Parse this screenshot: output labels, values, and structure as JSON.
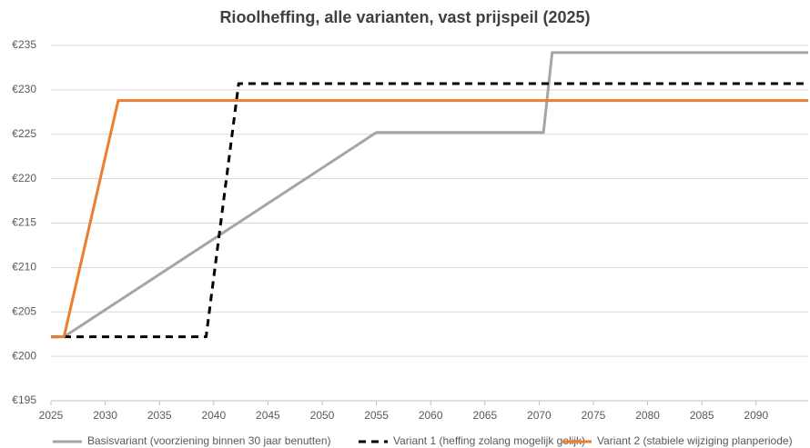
{
  "chart_data": {
    "type": "line",
    "title": "Rioolheffing, alle varianten, vast prijspeil (2025)",
    "xlim": [
      2025,
      2094.8
    ],
    "xticks": [
      2025,
      2030,
      2035,
      2040,
      2045,
      2050,
      2055,
      2060,
      2065,
      2070,
      2075,
      2080,
      2085,
      2090
    ],
    "ylim": [
      195,
      235
    ],
    "yticks": [
      {
        "value": 195,
        "label": "€195"
      },
      {
        "value": 200,
        "label": "€200"
      },
      {
        "value": 205,
        "label": "€205"
      },
      {
        "value": 210,
        "label": "€210"
      },
      {
        "value": 215,
        "label": "€215"
      },
      {
        "value": 220,
        "label": "€220"
      },
      {
        "value": 225,
        "label": "€225"
      },
      {
        "value": 230,
        "label": "€230"
      },
      {
        "value": 235,
        "label": "€235"
      }
    ],
    "grid": true,
    "legend": "bottom",
    "series": [
      {
        "name": "Basisvariant (voorziening binnen 30 jaar benutten)",
        "color": "#a5a5a5",
        "dashed": false,
        "x": [
          2025,
          2026.2,
          2055,
          2070.4,
          2071.2,
          2094.8
        ],
        "values": [
          202.2,
          202.2,
          225.2,
          225.2,
          234.2,
          234.2
        ]
      },
      {
        "name": "Variant 1 (heffing zolang mogelijk gelijk)",
        "color": "#000000",
        "dashed": true,
        "x": [
          2025,
          2039.3,
          2042.3,
          2094.8
        ],
        "values": [
          202.2,
          202.2,
          230.7,
          230.7
        ]
      },
      {
        "name": "Variant 2 (stabiele wijziging planperiode)",
        "color": "#ed7d31",
        "dashed": false,
        "x": [
          2025,
          2026.2,
          2031.2,
          2094.8
        ],
        "values": [
          202.2,
          202.2,
          228.8,
          228.8
        ]
      }
    ]
  }
}
